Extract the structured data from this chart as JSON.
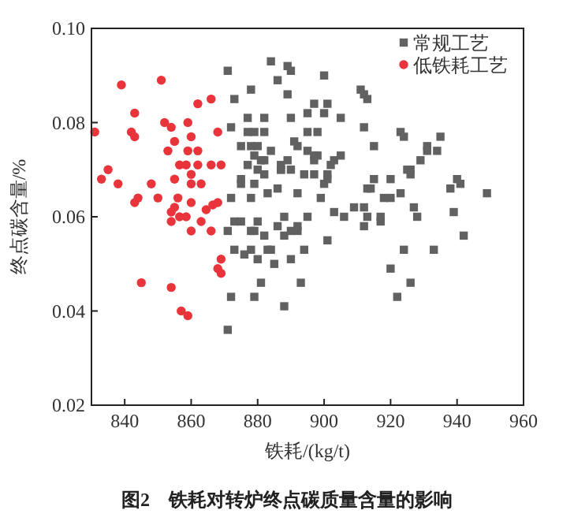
{
  "chart_data": {
    "type": "scatter",
    "title": "图2　铁耗对转炉终点碳质量含量的影响",
    "xlabel": "铁耗/(kg/t)",
    "ylabel": "终点碳含量/%",
    "xlim": [
      830,
      960
    ],
    "xticks": [
      840,
      860,
      880,
      900,
      920,
      940,
      960
    ],
    "ylim": [
      0.02,
      0.1
    ],
    "yticks": [
      0.02,
      0.04,
      0.06,
      0.08,
      {
        "value": 0.1,
        "label": "0.10"
      }
    ],
    "legend": "top right",
    "grid": false,
    "series": [
      {
        "name": "常规工艺",
        "color": "#616161",
        "marker": "square",
        "x": [
          871,
          873,
          872,
          872,
          873,
          871,
          873,
          872,
          871,
          878,
          884,
          889,
          890,
          886,
          889,
          900,
          877,
          882,
          877,
          879,
          882,
          890,
          895,
          897,
          901,
          900,
          905,
          895,
          898,
          875,
          878,
          880,
          884,
          891,
          892,
          895,
          897,
          879,
          881,
          882,
          877,
          887,
          889,
          890,
          887,
          897,
          898,
          902,
          903,
          905,
          880,
          882,
          875,
          875,
          879,
          887,
          894,
          897,
          901,
          901,
          900,
          878,
          883,
          886,
          892,
          899,
          875,
          880,
          878,
          879,
          882,
          886,
          888,
          890,
          892,
          892,
          888,
          895,
          903,
          906,
          909,
          901,
          876,
          878,
          880,
          883,
          884,
          885,
          890,
          894,
          881,
          879,
          893,
          888,
          911,
          912,
          913,
          912,
          923,
          924,
          935,
          915,
          931,
          931,
          934,
          929,
          926,
          925,
          926,
          915,
          920,
          913,
          914,
          918,
          920,
          923,
          938,
          940,
          941,
          949,
          912,
          913,
          912,
          917,
          917,
          927,
          928,
          939,
          942,
          924,
          933,
          920,
          926,
          922
        ],
        "values": [
          0.091,
          0.085,
          0.079,
          0.064,
          0.059,
          0.057,
          0.053,
          0.043,
          0.036,
          0.087,
          0.093,
          0.092,
          0.091,
          0.089,
          0.086,
          0.09,
          0.081,
          0.081,
          0.078,
          0.078,
          0.078,
          0.081,
          0.082,
          0.084,
          0.084,
          0.082,
          0.081,
          0.078,
          0.078,
          0.075,
          0.075,
          0.075,
          0.074,
          0.076,
          0.075,
          0.074,
          0.073,
          0.073,
          0.072,
          0.072,
          0.071,
          0.071,
          0.072,
          0.07,
          0.07,
          0.072,
          0.073,
          0.071,
          0.072,
          0.073,
          0.07,
          0.069,
          0.068,
          0.067,
          0.067,
          0.07,
          0.069,
          0.069,
          0.069,
          0.068,
          0.067,
          0.064,
          0.065,
          0.066,
          0.065,
          0.064,
          0.059,
          0.059,
          0.057,
          0.057,
          0.056,
          0.058,
          0.056,
          0.057,
          0.057,
          0.058,
          0.06,
          0.06,
          0.061,
          0.06,
          0.062,
          0.055,
          0.052,
          0.053,
          0.051,
          0.053,
          0.053,
          0.05,
          0.051,
          0.053,
          0.046,
          0.043,
          0.046,
          0.041,
          0.087,
          0.086,
          0.085,
          0.079,
          0.078,
          0.077,
          0.077,
          0.075,
          0.074,
          0.075,
          0.074,
          0.072,
          0.07,
          0.07,
          0.069,
          0.068,
          0.068,
          0.066,
          0.066,
          0.064,
          0.064,
          0.065,
          0.066,
          0.068,
          0.067,
          0.065,
          0.062,
          0.06,
          0.058,
          0.06,
          0.059,
          0.062,
          0.06,
          0.061,
          0.056,
          0.053,
          0.053,
          0.049,
          0.046,
          0.043
        ]
      },
      {
        "name": "低铁耗工艺",
        "color": "#e8343a",
        "marker": "circle",
        "x": [
          839,
          851,
          831,
          843,
          842,
          843,
          852,
          854,
          862,
          866,
          859,
          860,
          868,
          855,
          853,
          859,
          862,
          856.5,
          858.5,
          862,
          866,
          869,
          860,
          835,
          833,
          838,
          848,
          855,
          860,
          863,
          844,
          843,
          850,
          856,
          855,
          854,
          854,
          856.5,
          858.5,
          860,
          863,
          864.5,
          866.5,
          868,
          860,
          866,
          869,
          868,
          869,
          845,
          854,
          857,
          859
        ],
        "values": [
          0.088,
          0.089,
          0.078,
          0.082,
          0.078,
          0.077,
          0.08,
          0.079,
          0.084,
          0.085,
          0.08,
          0.077,
          0.078,
          0.076,
          0.074,
          0.074,
          0.074,
          0.071,
          0.071,
          0.071,
          0.071,
          0.071,
          0.069,
          0.07,
          0.068,
          0.067,
          0.067,
          0.068,
          0.067,
          0.067,
          0.064,
          0.063,
          0.064,
          0.064,
          0.062,
          0.061,
          0.059,
          0.06,
          0.06,
          0.063,
          0.059,
          0.0615,
          0.0625,
          0.063,
          0.057,
          0.057,
          0.051,
          0.049,
          0.048,
          0.046,
          0.045,
          0.04,
          0.039
        ]
      }
    ]
  }
}
